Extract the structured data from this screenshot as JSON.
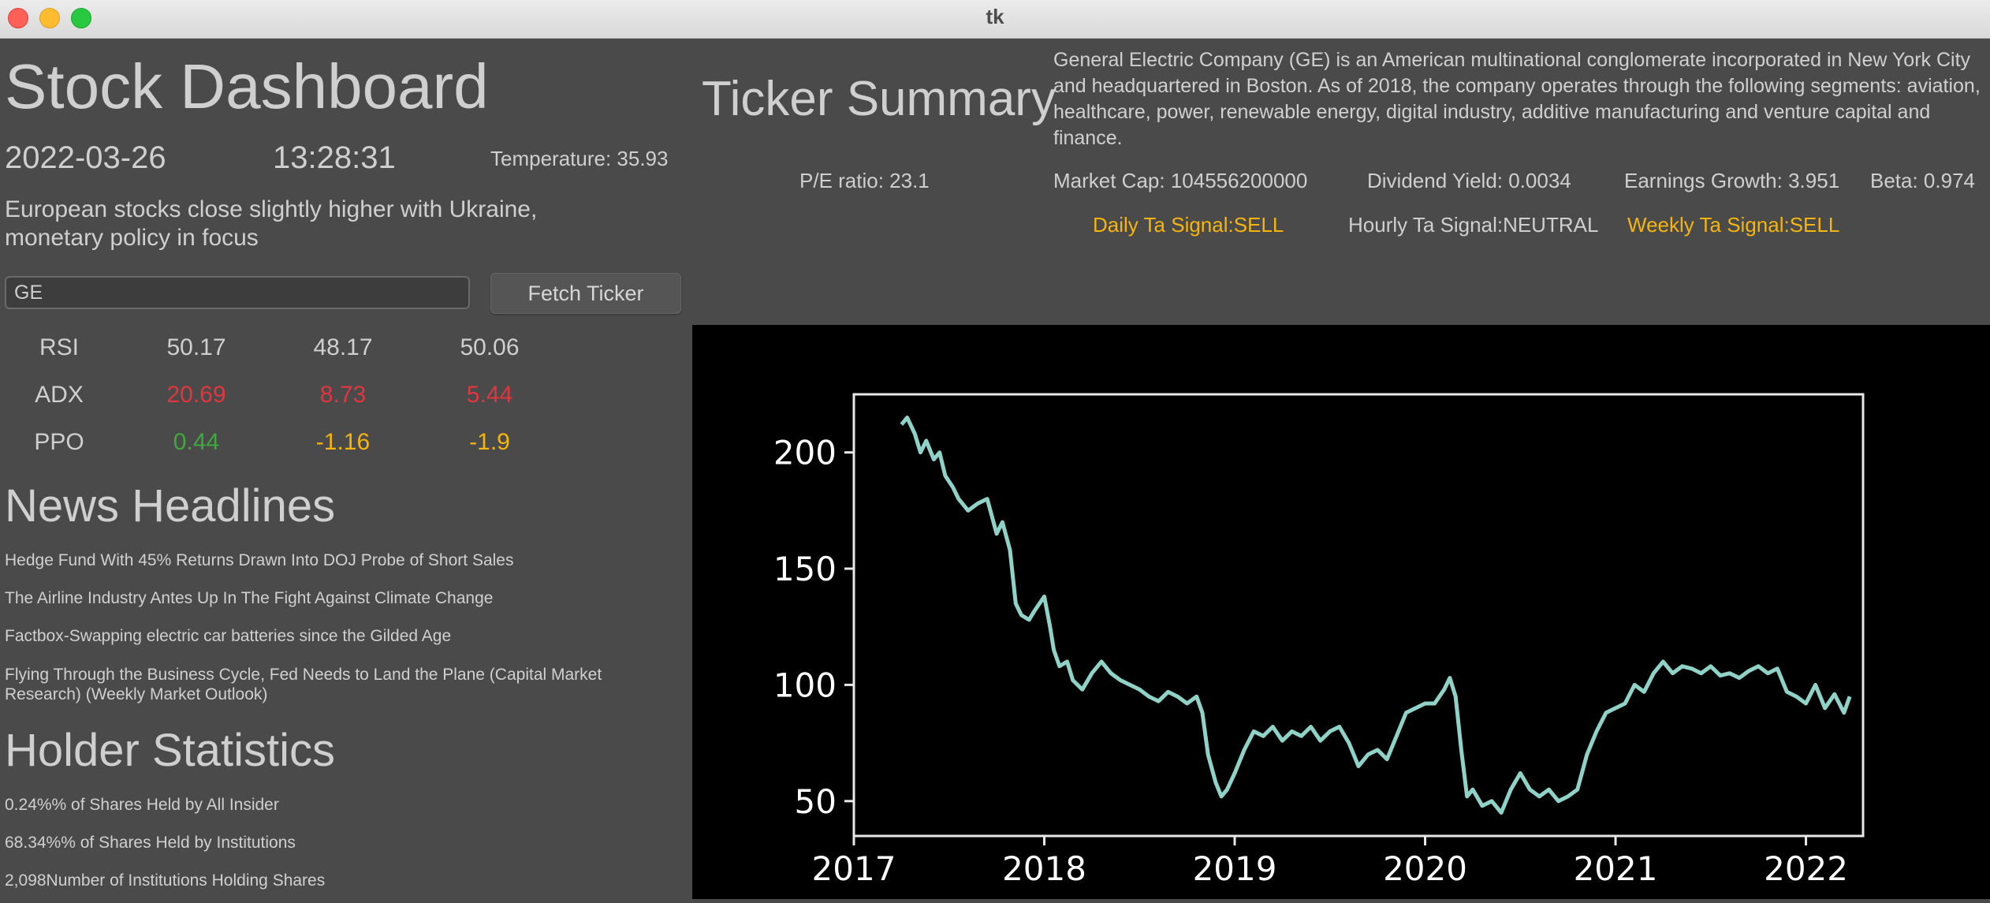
{
  "window": {
    "title": "tk"
  },
  "dashboard": {
    "title": "Stock Dashboard",
    "date": "2022-03-26",
    "time": "13:28:31",
    "temperature": "Temperature: 35.93",
    "headline": "European stocks close slightly higher with Ukraine, monetary policy in focus",
    "ticker_value": "GE",
    "fetch_label": "Fetch Ticker"
  },
  "indicators": [
    {
      "name": "RSI",
      "values": [
        "50.17",
        "48.17",
        "50.06"
      ],
      "colors": [
        "#cfcfcf",
        "#cfcfcf",
        "#cfcfcf"
      ]
    },
    {
      "name": "ADX",
      "values": [
        "20.69",
        "8.73",
        "5.44"
      ],
      "colors": [
        "#e0363e",
        "#e0363e",
        "#e0363e"
      ]
    },
    {
      "name": "PPO",
      "values": [
        "0.44",
        "-1.16",
        "-1.9"
      ],
      "colors": [
        "#3fa83f",
        "#f5b50f",
        "#f5b50f"
      ]
    }
  ],
  "news": {
    "title": "News Headlines",
    "items": [
      "Hedge Fund With 45% Returns Drawn Into DOJ Probe of Short Sales",
      "The Airline Industry Antes Up In The Fight Against Climate Change",
      "Factbox-Swapping electric car batteries since the Gilded Age",
      "Flying Through the Business Cycle, Fed Needs to Land the Plane (Capital Market Research) (Weekly Market Outlook)"
    ]
  },
  "holders": {
    "title": "Holder Statistics",
    "items": [
      "0.24%% of Shares Held by All Insider",
      "68.34%% of Shares Held by Institutions",
      "2,098Number of Institutions Holding Shares"
    ]
  },
  "summary": {
    "title": "Ticker Summary",
    "description": "General Electric Company (GE) is an American multinational conglomerate incorporated in New York City and headquartered in Boston. As of 2018, the company operates through the following segments: aviation, healthcare, power, renewable energy, digital industry, additive manufacturing and venture capital and finance.",
    "pe_ratio": "P/E ratio: 23.1",
    "market_cap": "Market Cap: 104556200000",
    "dividend_yield": "Dividend Yield: 0.0034",
    "earnings_growth": "Earnings Growth: 3.951",
    "beta": "Beta: 0.974",
    "daily_signal": "Daily Ta Signal:SELL",
    "hourly_signal": "Hourly Ta Signal:NEUTRAL",
    "weekly_signal": "Weekly Ta Signal:SELL",
    "signal_colors": {
      "sell": "#f5b50f",
      "neutral": "#cfcfcf"
    }
  },
  "chart_data": {
    "type": "line",
    "title": "",
    "xlabel": "",
    "ylabel": "",
    "xlim": [
      2017.0,
      2022.3
    ],
    "ylim": [
      35,
      225
    ],
    "xticks": [
      "2017",
      "2018",
      "2019",
      "2020",
      "2021",
      "2022"
    ],
    "yticks": [
      "50",
      "100",
      "150",
      "200"
    ],
    "line_color": "#8fd3c8",
    "background": "#000000",
    "series": [
      {
        "x": [
          2017.25,
          2017.28,
          2017.32,
          2017.35,
          2017.38,
          2017.42,
          2017.45,
          2017.48,
          2017.52,
          2017.55,
          2017.6,
          2017.65,
          2017.7,
          2017.75,
          2017.78,
          2017.82,
          2017.85,
          2017.88,
          2017.92,
          2017.95,
          2018.0,
          2018.03,
          2018.05,
          2018.08,
          2018.12,
          2018.15,
          2018.2,
          2018.25,
          2018.3,
          2018.35,
          2018.4,
          2018.45,
          2018.5,
          2018.55,
          2018.6,
          2018.65,
          2018.7,
          2018.75,
          2018.8,
          2018.83,
          2018.86,
          2018.9,
          2018.93,
          2018.96,
          2019.0,
          2019.05,
          2019.1,
          2019.15,
          2019.2,
          2019.25,
          2019.3,
          2019.35,
          2019.4,
          2019.45,
          2019.5,
          2019.55,
          2019.6,
          2019.65,
          2019.7,
          2019.75,
          2019.8,
          2019.85,
          2019.9,
          2019.95,
          2020.0,
          2020.05,
          2020.1,
          2020.13,
          2020.16,
          2020.19,
          2020.22,
          2020.25,
          2020.3,
          2020.35,
          2020.4,
          2020.45,
          2020.5,
          2020.55,
          2020.6,
          2020.65,
          2020.7,
          2020.75,
          2020.8,
          2020.85,
          2020.9,
          2020.95,
          2021.0,
          2021.05,
          2021.1,
          2021.15,
          2021.2,
          2021.25,
          2021.3,
          2021.35,
          2021.4,
          2021.45,
          2021.5,
          2021.55,
          2021.6,
          2021.65,
          2021.7,
          2021.75,
          2021.8,
          2021.85,
          2021.9,
          2021.95,
          2022.0,
          2022.05,
          2022.1,
          2022.15,
          2022.2,
          2022.23
        ],
        "y": [
          212,
          215,
          208,
          200,
          205,
          197,
          200,
          190,
          185,
          180,
          175,
          178,
          180,
          165,
          170,
          158,
          135,
          130,
          128,
          132,
          138,
          125,
          115,
          108,
          110,
          102,
          98,
          105,
          110,
          105,
          102,
          100,
          98,
          95,
          93,
          97,
          95,
          92,
          95,
          88,
          70,
          58,
          52,
          55,
          62,
          72,
          80,
          78,
          82,
          76,
          80,
          78,
          82,
          76,
          80,
          82,
          75,
          65,
          70,
          72,
          68,
          78,
          88,
          90,
          92,
          92,
          98,
          103,
          95,
          72,
          52,
          55,
          48,
          50,
          45,
          55,
          62,
          55,
          52,
          55,
          50,
          52,
          55,
          70,
          80,
          88,
          90,
          92,
          100,
          97,
          105,
          110,
          105,
          108,
          107,
          105,
          108,
          104,
          105,
          103,
          106,
          108,
          105,
          107,
          97,
          95,
          92,
          100,
          90,
          96,
          88,
          95
        ]
      }
    ]
  }
}
